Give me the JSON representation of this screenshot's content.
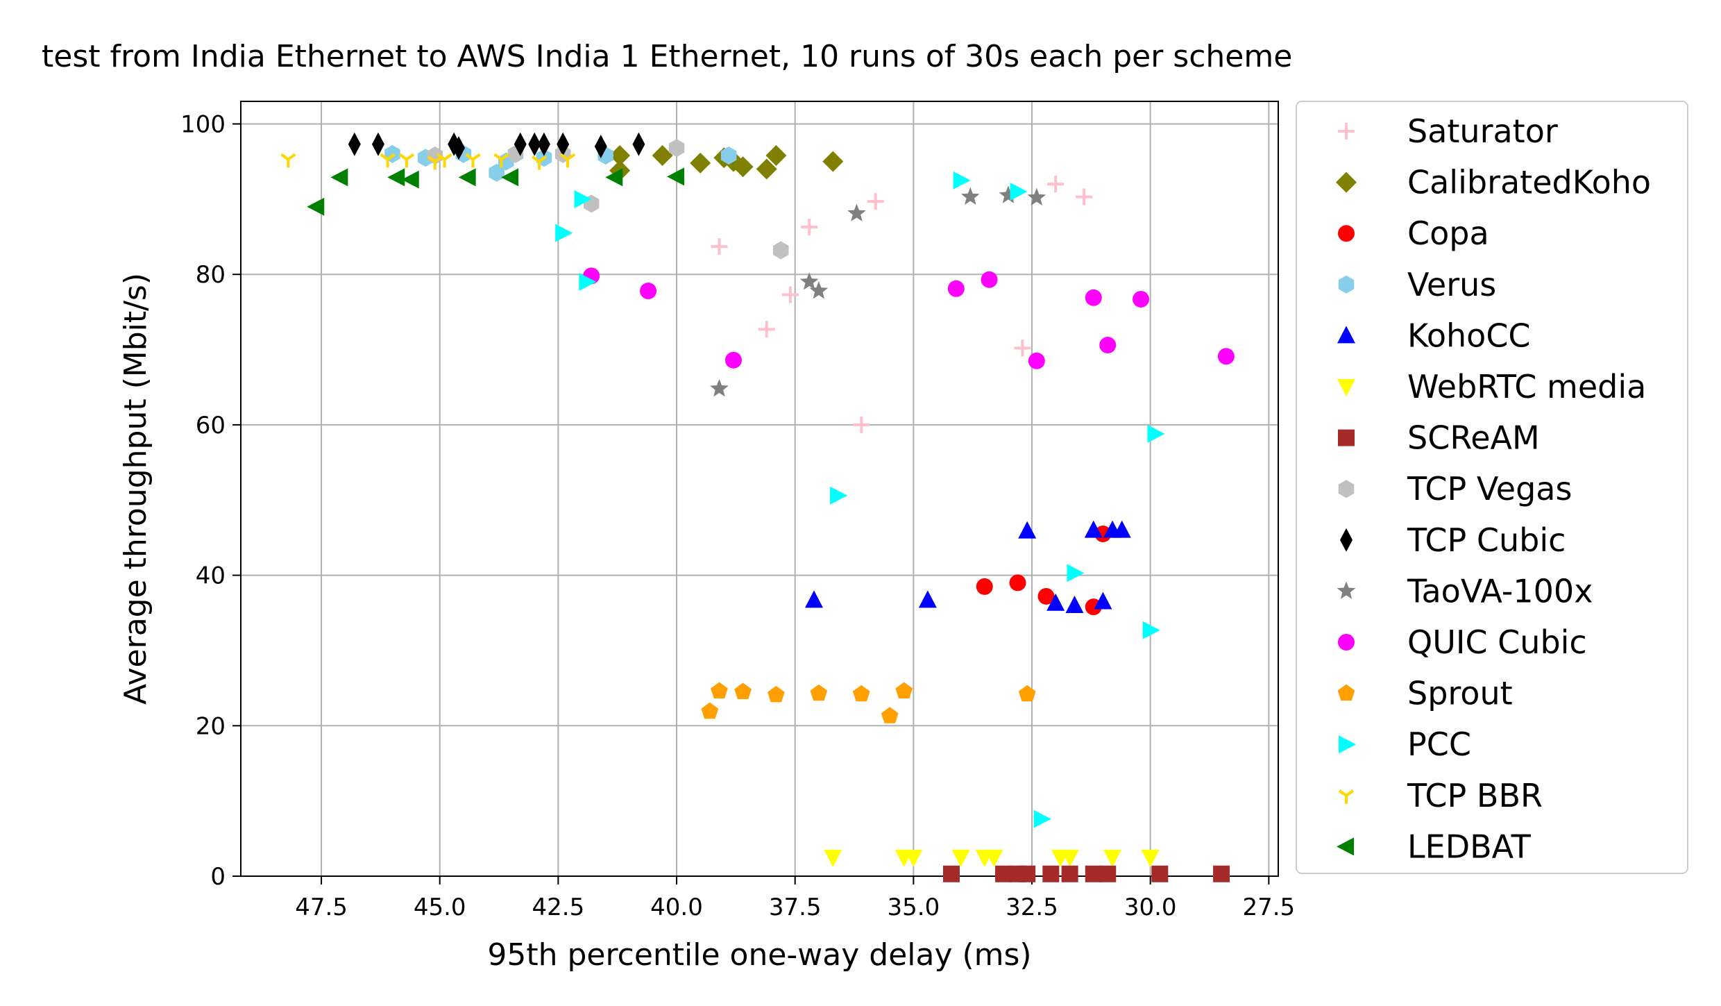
{
  "chart_data": {
    "type": "scatter",
    "title": "test from India Ethernet to AWS India 1 Ethernet, 10 runs of 30s each per scheme",
    "xlabel": "95th percentile one-way delay (ms)",
    "ylabel": "Average throughput (Mbit/s)",
    "xlim": [
      49.2,
      27.3
    ],
    "ylim": [
      0,
      103
    ],
    "x_inverted": true,
    "grid": true,
    "legend_position": "outside-right",
    "xticks": [
      "47.5",
      "45.0",
      "42.5",
      "40.0",
      "37.5",
      "35.0",
      "32.5",
      "30.0",
      "27.5"
    ],
    "xtick_values": [
      47.5,
      45.0,
      42.5,
      40.0,
      37.5,
      35.0,
      32.5,
      30.0,
      27.5
    ],
    "yticks": [
      "0",
      "20",
      "40",
      "60",
      "80",
      "100"
    ],
    "ytick_values": [
      0,
      20,
      40,
      60,
      80,
      100
    ],
    "series": [
      {
        "name": "Saturator",
        "marker": "plus",
        "color": "#ffc0cb",
        "points": [
          [
            39.1,
            83.7
          ],
          [
            37.2,
            86.3
          ],
          [
            37.6,
            77.3
          ],
          [
            38.1,
            72.7
          ],
          [
            35.8,
            89.7
          ],
          [
            36.1,
            60.0
          ],
          [
            32.7,
            70.2
          ],
          [
            32.0,
            92.0
          ],
          [
            31.4,
            90.3
          ],
          [
            32.9,
            90.8
          ]
        ]
      },
      {
        "name": "CalibratedKoho",
        "marker": "diamond",
        "color": "#808000",
        "points": [
          [
            41.2,
            95.8
          ],
          [
            41.2,
            93.8
          ],
          [
            40.3,
            95.8
          ],
          [
            39.5,
            94.8
          ],
          [
            39.0,
            95.5
          ],
          [
            38.6,
            94.3
          ],
          [
            38.1,
            94.0
          ],
          [
            37.9,
            95.8
          ],
          [
            36.7,
            95.0
          ],
          [
            38.8,
            95.0
          ]
        ]
      },
      {
        "name": "Copa",
        "marker": "circle",
        "color": "#ff0000",
        "points": [
          [
            33.5,
            38.5
          ],
          [
            32.8,
            39.0
          ],
          [
            32.2,
            37.2
          ],
          [
            31.2,
            35.8
          ],
          [
            31.0,
            45.5
          ]
        ]
      },
      {
        "name": "Verus",
        "marker": "hexagon",
        "color": "#87ceeb",
        "points": [
          [
            46.0,
            96.0
          ],
          [
            45.3,
            95.5
          ],
          [
            44.5,
            96.0
          ],
          [
            43.8,
            93.5
          ],
          [
            43.6,
            95.0
          ],
          [
            42.8,
            95.5
          ],
          [
            41.5,
            95.8
          ],
          [
            38.9,
            95.8
          ]
        ]
      },
      {
        "name": "KohoCC",
        "marker": "triangle-up",
        "color": "#0000ff",
        "points": [
          [
            37.1,
            36.7
          ],
          [
            34.7,
            36.7
          ],
          [
            32.6,
            45.9
          ],
          [
            32.0,
            36.3
          ],
          [
            31.6,
            36.0
          ],
          [
            31.2,
            46.0
          ],
          [
            31.0,
            36.5
          ],
          [
            30.8,
            46.0
          ],
          [
            30.6,
            46.0
          ]
        ]
      },
      {
        "name": "WebRTC media",
        "marker": "triangle-down",
        "color": "#ffff00",
        "points": [
          [
            36.7,
            2.5
          ],
          [
            35.2,
            2.5
          ],
          [
            35.0,
            2.5
          ],
          [
            34.0,
            2.5
          ],
          [
            33.5,
            2.5
          ],
          [
            33.3,
            2.5
          ],
          [
            31.9,
            2.5
          ],
          [
            31.7,
            2.5
          ],
          [
            30.8,
            2.5
          ],
          [
            30.0,
            2.5
          ]
        ]
      },
      {
        "name": "SCReAM",
        "marker": "square",
        "color": "#a52a2a",
        "points": [
          [
            34.2,
            0.3
          ],
          [
            33.1,
            0.3
          ],
          [
            32.8,
            0.3
          ],
          [
            32.6,
            0.3
          ],
          [
            32.1,
            0.3
          ],
          [
            31.7,
            0.3
          ],
          [
            31.2,
            0.3
          ],
          [
            30.9,
            0.3
          ],
          [
            29.8,
            0.3
          ],
          [
            28.5,
            0.3
          ]
        ]
      },
      {
        "name": "TCP Vegas",
        "marker": "hexagon",
        "color": "#c0c0c0",
        "points": [
          [
            45.1,
            95.8
          ],
          [
            43.4,
            96.0
          ],
          [
            42.4,
            96.0
          ],
          [
            41.8,
            89.4
          ],
          [
            40.0,
            96.8
          ],
          [
            37.8,
            83.2
          ]
        ]
      },
      {
        "name": "TCP Cubic",
        "marker": "thin-diamond",
        "color": "#000000",
        "points": [
          [
            46.8,
            97.3
          ],
          [
            46.3,
            97.3
          ],
          [
            44.7,
            97.3
          ],
          [
            44.6,
            96.8
          ],
          [
            43.3,
            97.3
          ],
          [
            43.0,
            97.3
          ],
          [
            42.8,
            97.3
          ],
          [
            42.4,
            97.3
          ],
          [
            41.6,
            97.0
          ],
          [
            40.8,
            97.3
          ]
        ]
      },
      {
        "name": "TaoVA-100x",
        "marker": "star",
        "color": "#808080",
        "points": [
          [
            39.1,
            64.8
          ],
          [
            37.2,
            79.0
          ],
          [
            37.0,
            77.8
          ],
          [
            36.2,
            88.1
          ],
          [
            33.8,
            90.3
          ],
          [
            33.0,
            90.5
          ],
          [
            32.4,
            90.2
          ]
        ]
      },
      {
        "name": "QUIC Cubic",
        "marker": "circle",
        "color": "#ff00ff",
        "points": [
          [
            41.8,
            79.8
          ],
          [
            40.6,
            77.8
          ],
          [
            38.8,
            68.6
          ],
          [
            34.1,
            78.1
          ],
          [
            33.4,
            79.3
          ],
          [
            32.4,
            68.5
          ],
          [
            31.2,
            76.9
          ],
          [
            30.9,
            70.6
          ],
          [
            30.2,
            76.7
          ],
          [
            28.4,
            69.1
          ]
        ]
      },
      {
        "name": "Sprout",
        "marker": "pentagon",
        "color": "#ff9f00",
        "points": [
          [
            39.3,
            21.9
          ],
          [
            39.1,
            24.6
          ],
          [
            38.6,
            24.5
          ],
          [
            37.9,
            24.1
          ],
          [
            37.0,
            24.3
          ],
          [
            36.1,
            24.2
          ],
          [
            35.5,
            21.3
          ],
          [
            35.2,
            24.6
          ],
          [
            32.6,
            24.2
          ]
        ]
      },
      {
        "name": "PCC",
        "marker": "triangle-right",
        "color": "#00ffff",
        "points": [
          [
            42.4,
            85.5
          ],
          [
            42.0,
            90.0
          ],
          [
            41.9,
            79.0
          ],
          [
            36.6,
            50.6
          ],
          [
            34.0,
            92.5
          ],
          [
            32.8,
            91.0
          ],
          [
            32.3,
            7.6
          ],
          [
            31.6,
            40.3
          ],
          [
            30.0,
            32.7
          ],
          [
            29.9,
            58.8
          ]
        ]
      },
      {
        "name": "TCP BBR",
        "marker": "tri-down",
        "color": "#ffd700",
        "points": [
          [
            48.2,
            95.3
          ],
          [
            46.1,
            95.3
          ],
          [
            45.7,
            95.3
          ],
          [
            44.9,
            95.3
          ],
          [
            45.1,
            95.0
          ],
          [
            44.3,
            95.3
          ],
          [
            43.7,
            95.3
          ],
          [
            42.9,
            95.0
          ],
          [
            42.3,
            95.3
          ]
        ]
      },
      {
        "name": "LEDBAT",
        "marker": "triangle-left",
        "color": "#008000",
        "points": [
          [
            47.6,
            89.0
          ],
          [
            47.1,
            92.9
          ],
          [
            45.9,
            92.9
          ],
          [
            45.6,
            92.6
          ],
          [
            44.4,
            92.9
          ],
          [
            43.5,
            92.9
          ],
          [
            41.3,
            92.9
          ],
          [
            40.0,
            93.0
          ]
        ]
      }
    ]
  }
}
